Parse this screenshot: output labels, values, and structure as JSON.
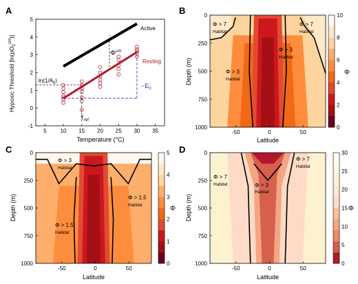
{
  "chart_data": [
    {
      "panel": "A",
      "type": "scatter",
      "xlabel": "Temperature (°C)",
      "ylabel": "Hypoxic Threshold [ln(pO2crit)]",
      "ylabel_main": "Hypoxic Threshold [ln(pO",
      "ylabel_sub": "2",
      "ylabel_sup": "crit",
      "ylabel_end": ")]",
      "xlim": [
        2.5,
        37.5
      ],
      "ylim": [
        -1,
        5
      ],
      "xticks": [
        "5",
        "10",
        "15",
        "20",
        "25",
        "30",
        "35"
      ],
      "yticks": [
        "-1",
        "0",
        "1",
        "2",
        "3",
        "4",
        "5"
      ],
      "series": [
        {
          "name": "Active",
          "type": "line",
          "color": "#000000",
          "x": [
            10,
            30
          ],
          "y": [
            2.35,
            4.75
          ]
        },
        {
          "name": "Resting",
          "type": "line",
          "color": "#b2182b",
          "x": [
            10,
            30
          ],
          "y": [
            0.55,
            3.15
          ]
        },
        {
          "name": "",
          "type": "scatter",
          "color": "#b2182b",
          "x": [
            10,
            10,
            10,
            10,
            10,
            10,
            10,
            15,
            15,
            15,
            15,
            15,
            15,
            15,
            20,
            20,
            20,
            20,
            20,
            20,
            25,
            25,
            25,
            25,
            25,
            30,
            30,
            30,
            30,
            30
          ],
          "y": [
            0.3,
            0.5,
            0.7,
            0.9,
            1.1,
            1.3,
            0.6,
            -0.1,
            0.4,
            0.6,
            0.9,
            1.1,
            1.3,
            1.5,
            1.2,
            1.4,
            1.6,
            1.8,
            2.0,
            2.3,
            1.9,
            2.2,
            2.4,
            2.7,
            2.9,
            2.9,
            3.1,
            3.3,
            3.45,
            3.2
          ]
        }
      ],
      "annotations": {
        "active": "Active",
        "resting": "Resting",
        "phi": "Φ",
        "phi_sup": "crit",
        "ln_a": "ln(1/A",
        "ln_a_sub": "0",
        "ln_a_end": ")",
        "e0": "−E",
        "e0_sub": "0",
        "tref": "T",
        "tref_sub": "ref"
      }
    },
    {
      "panel": "B",
      "type": "heatmap",
      "xlabel": "Latitude",
      "ylabel": "Depth (m)",
      "colorbar_label": "Φ",
      "xticks": [
        "-50",
        "0",
        "50"
      ],
      "yticks": [
        "0",
        "250",
        "500",
        "750",
        "1000"
      ],
      "cbar_ticks": [
        "0",
        "2",
        "4",
        "6",
        "8",
        "10"
      ],
      "colormap": [
        "#67001f",
        "#a50f15",
        "#cb181d",
        "#e34a33",
        "#f16913",
        "#fd8d3c",
        "#fdae6b",
        "#fdd49e",
        "#fee8c8",
        "#fff7ec"
      ],
      "labels": [
        {
          "phi": "Φ > 7",
          "habitat": "Habitat"
        },
        {
          "phi": "Φ > 7",
          "habitat": "Habitat"
        },
        {
          "phi": "Φ > 3",
          "habitat": "Habitat"
        },
        {
          "phi": "Φ > 3",
          "habitat": "Habitat"
        }
      ]
    },
    {
      "panel": "C",
      "type": "heatmap",
      "xlabel": "Latitude",
      "ylabel": "Depth (m)",
      "colorbar_label": "Φ",
      "xticks": [
        "-50",
        "0",
        "50"
      ],
      "yticks": [
        "0",
        "250",
        "500",
        "750",
        "1000"
      ],
      "cbar_ticks": [
        "0",
        "1",
        "2",
        "3",
        "4",
        "5"
      ],
      "colormap": [
        "#67001f",
        "#a50f15",
        "#cb181d",
        "#e34a33",
        "#f16913",
        "#fd8d3c",
        "#fdae6b",
        "#fdd49e",
        "#fee8c8",
        "#fff7ec"
      ],
      "labels": [
        {
          "phi": "Φ > 3",
          "habitat": "Habitat"
        },
        {
          "phi": "Φ > 1.5",
          "habitat": "Habitat"
        },
        {
          "phi": "Φ > 1.5",
          "habitat": "Habitat"
        }
      ]
    },
    {
      "panel": "D",
      "type": "heatmap",
      "xlabel": "Latitude",
      "ylabel": "Depth (m)",
      "colorbar_label": "Φ",
      "xticks": [
        "-50",
        "0",
        "50"
      ],
      "yticks": [
        "0",
        "250",
        "500",
        "750",
        "1000"
      ],
      "cbar_ticks": [
        "0",
        "5",
        "10",
        "15",
        "20",
        "25",
        "30"
      ],
      "colormap": [
        "#b2182b",
        "#d6604d",
        "#ef8a62",
        "#f4a582",
        "#fbc09a",
        "#fddbc7",
        "#fde8d7",
        "#fdf2d0",
        "#fef8e0",
        "#fffdf0"
      ],
      "labels": [
        {
          "phi": "Φ > 7",
          "habitat": "Habitat"
        },
        {
          "phi": "Φ > 7",
          "habitat": "Habitat"
        },
        {
          "phi": "Φ > 3",
          "habitat": "Habitat"
        }
      ]
    }
  ]
}
